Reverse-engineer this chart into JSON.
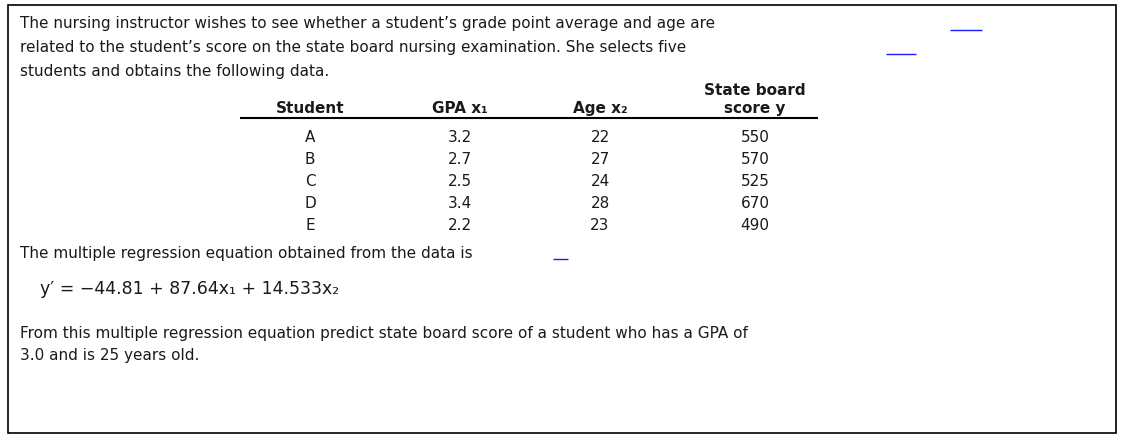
{
  "bg_color": "#ffffff",
  "border_color": "#000000",
  "line1": "The nursing instructor wishes to see whether a student’s grade point average and age are",
  "line1_underline": "are",
  "line2": "related to the student’s score on the state board nursing examination. She selects five",
  "line2_underline": "five",
  "line3": "students and obtains the following data.",
  "col_student": "Student",
  "col_gpa": "GPA x₁",
  "col_age": "Age x₂",
  "col_sb1": "State board",
  "col_sb2": "score y",
  "students": [
    "A",
    "B",
    "C",
    "D",
    "E"
  ],
  "gpa": [
    "3.2",
    "2.7",
    "2.5",
    "3.4",
    "2.2"
  ],
  "age": [
    "22",
    "27",
    "24",
    "28",
    "23"
  ],
  "score": [
    "550",
    "570",
    "525",
    "670",
    "490"
  ],
  "reg_text_before": "The multiple regression equation obtained from the data ",
  "reg_text_underline": "is",
  "eq_line": "y′ = −44.81 + 87.64x₁ + 14.533x₂",
  "q_line1": "From this multiple regression equation predict state board score of a student who has a GPA of",
  "q_line2": "3.0 and is 25 years old.",
  "fs_body": 11.0,
  "fs_eq": 12.5,
  "tc": "#1a1a1a"
}
